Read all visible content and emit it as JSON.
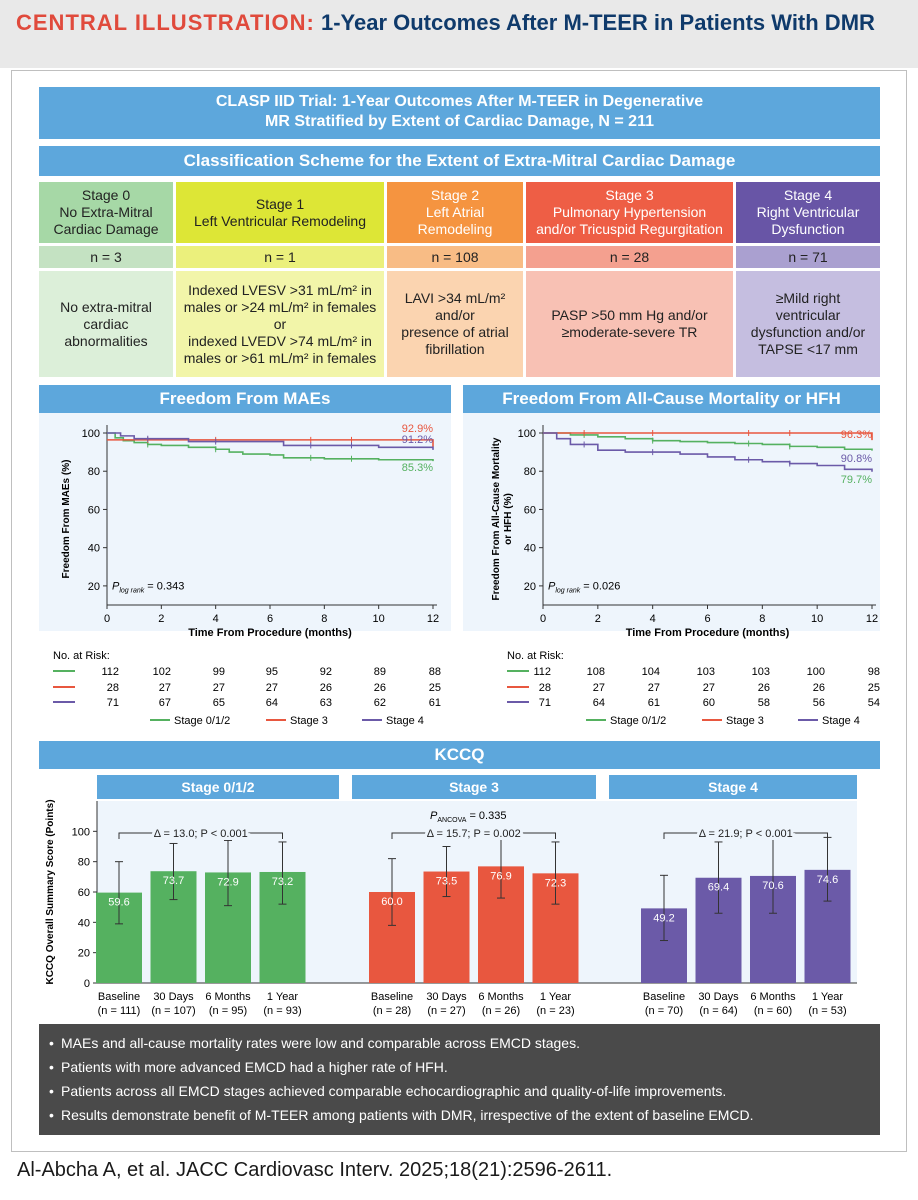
{
  "header": {
    "lead": "CENTRAL ILLUSTRATION:",
    "title": "1-Year Outcomes After M-TEER in Patients With DMR"
  },
  "trial": {
    "line1": "CLASP IID Trial: 1-Year Outcomes After M-TEER in Degenerative",
    "line2": "MR Stratified by Extent of Cardiac Damage, N = 211"
  },
  "classification": {
    "title": "Classification Scheme for the Extent of Extra-Mitral Cardiac Damage",
    "stages": [
      {
        "head": [
          "Stage 0",
          "No Extra-Mitral",
          "Cardiac Damage"
        ],
        "n": "n = 3",
        "desc": [
          "No extra-mitral",
          "cardiac",
          "abnormalities"
        ]
      },
      {
        "head": [
          "Stage 1",
          "Left Ventricular Remodeling"
        ],
        "n": "n = 1",
        "desc": [
          "Indexed LVESV >31 mL/m² in",
          "males or >24 mL/m² in females",
          "or",
          "indexed LVEDV >74 mL/m² in",
          "males or >61 mL/m² in females"
        ]
      },
      {
        "head": [
          "Stage 2",
          "Left Atrial",
          "Remodeling"
        ],
        "n": "n = 108",
        "desc": [
          "LAVI >34 mL/m²",
          "and/or",
          "presence of atrial",
          "fibrillation"
        ]
      },
      {
        "head": [
          "Stage 3",
          "Pulmonary Hypertension",
          "and/or Tricuspid Regurgitation"
        ],
        "n": "n = 28",
        "desc": [
          "PASP >50 mm Hg and/or",
          "≥moderate-severe TR"
        ]
      },
      {
        "head": [
          "Stage 4",
          "Right Ventricular",
          "Dysfunction"
        ],
        "n": "n = 71",
        "desc": [
          "≥Mild right",
          "ventricular",
          "dysfunction and/or",
          "TAPSE <17 mm"
        ]
      }
    ]
  },
  "colors": {
    "green": "#55b160",
    "red": "#e8573f",
    "purple": "#6b5aa8",
    "blue": "#5da7dc"
  },
  "chart_data": [
    {
      "type": "line",
      "title": "Freedom From MAEs",
      "xlabel": "Time From Procedure (months)",
      "ylabel": "Freedom From MAEs (%)",
      "xlim": [
        0,
        12
      ],
      "ylim": [
        10,
        100
      ],
      "xticks": [
        "0",
        "2",
        "4",
        "6",
        "8",
        "10",
        "12"
      ],
      "yticks": [
        "20",
        "40",
        "60",
        "80",
        "100"
      ],
      "annotation": {
        "p_label": "log rank",
        "p_value": "= 0.343"
      },
      "end_labels": [
        "92.9%",
        "91.2%",
        "85.3%"
      ],
      "series": [
        {
          "name": "Stage 0/1/2",
          "color": "#55b160",
          "x": [
            0,
            0.3,
            0.6,
            1,
            1.5,
            2,
            3,
            4,
            4.5,
            5,
            6,
            6.5,
            8,
            10,
            12
          ],
          "y": [
            100,
            97.5,
            96,
            95,
            94,
            93.5,
            92.5,
            91.5,
            90,
            89,
            88.5,
            87,
            86.5,
            86,
            85.3
          ]
        },
        {
          "name": "Stage 3",
          "color": "#e8573f",
          "x": [
            0,
            6.7,
            12
          ],
          "y": [
            96.4,
            96.4,
            92.9
          ]
        },
        {
          "name": "Stage 4",
          "color": "#6b5aa8",
          "x": [
            0,
            0.5,
            1,
            3,
            6.5,
            10,
            12
          ],
          "y": [
            100,
            98.5,
            97,
            95.5,
            93.5,
            92.5,
            91.2
          ]
        }
      ],
      "risk_header": "No. at Risk:",
      "risk_rows": [
        {
          "color": "#55b160",
          "values": [
            "112",
            "102",
            "99",
            "95",
            "92",
            "89",
            "88"
          ]
        },
        {
          "color": "#e8573f",
          "values": [
            "28",
            "27",
            "27",
            "27",
            "26",
            "26",
            "25"
          ]
        },
        {
          "color": "#6b5aa8",
          "values": [
            "71",
            "67",
            "65",
            "64",
            "63",
            "62",
            "61"
          ]
        }
      ],
      "legend": [
        "Stage 0/1/2",
        "Stage 3",
        "Stage 4"
      ]
    },
    {
      "type": "line",
      "title": "Freedom From All-Cause Mortality or HFH",
      "xlabel": "Time From Procedure (months)",
      "ylabel": "Freedom From All-Cause Mortality or HFH (%)",
      "xlim": [
        0,
        12
      ],
      "ylim": [
        10,
        100
      ],
      "xticks": [
        "0",
        "2",
        "4",
        "6",
        "8",
        "10",
        "12"
      ],
      "yticks": [
        "20",
        "40",
        "60",
        "80",
        "100"
      ],
      "annotation": {
        "p_label": "log rank",
        "p_value": "= 0.026"
      },
      "end_labels": [
        "96.3%",
        "90.8%",
        "79.7%"
      ],
      "series": [
        {
          "name": "Stage 0/1/2",
          "color": "#55b160",
          "x": [
            0,
            1,
            2,
            3,
            4,
            5,
            6,
            7,
            8,
            9,
            10,
            11,
            12
          ],
          "y": [
            100,
            99,
            98,
            97,
            96,
            95.5,
            95,
            94.5,
            94,
            93,
            92.5,
            91.5,
            90.8
          ]
        },
        {
          "name": "Stage 3",
          "color": "#e8573f",
          "x": [
            0,
            6.7,
            12
          ],
          "y": [
            100,
            100,
            96.3
          ]
        },
        {
          "name": "Stage 4",
          "color": "#6b5aa8",
          "x": [
            0,
            0.5,
            1,
            2,
            3,
            5,
            6,
            7,
            8,
            9,
            10,
            11,
            12
          ],
          "y": [
            100,
            97,
            94,
            91,
            90,
            89,
            87.5,
            86,
            85,
            84,
            83,
            81,
            79.7
          ]
        }
      ],
      "risk_header": "No. at Risk:",
      "risk_rows": [
        {
          "color": "#55b160",
          "values": [
            "112",
            "108",
            "104",
            "103",
            "103",
            "100",
            "98"
          ]
        },
        {
          "color": "#e8573f",
          "values": [
            "28",
            "27",
            "27",
            "27",
            "26",
            "26",
            "25"
          ]
        },
        {
          "color": "#6b5aa8",
          "values": [
            "71",
            "64",
            "61",
            "60",
            "58",
            "56",
            "54"
          ]
        }
      ],
      "legend": [
        "Stage 0/1/2",
        "Stage 3",
        "Stage 4"
      ]
    },
    {
      "type": "bar",
      "title": "KCCQ",
      "ylabel": "KCCQ Overall Summary Score (Points)",
      "ylim": [
        0,
        120
      ],
      "yticks": [
        "0",
        "20",
        "40",
        "60",
        "80",
        "100"
      ],
      "p_ancova": {
        "label": "ANCOVA",
        "value": "= 0.335"
      },
      "groups": [
        {
          "name": "Stage 0/1/2",
          "color": "#55b160",
          "delta": "Δ = 13.0; P < 0.001",
          "categories": [
            "Baseline",
            "30 Days",
            "6 Months",
            "1 Year"
          ],
          "ns": [
            "(n = 111)",
            "(n = 107)",
            "(n = 95)",
            "(n = 93)"
          ],
          "values": [
            59.6,
            73.7,
            72.9,
            73.2
          ],
          "labels": [
            "59.6",
            "73.7",
            "72.9",
            "73.2"
          ],
          "err_low": [
            39,
            55,
            51,
            52
          ],
          "err_high": [
            80,
            92,
            94,
            93
          ]
        },
        {
          "name": "Stage 3",
          "color": "#e8573f",
          "delta": "Δ = 15.7; P = 0.002",
          "categories": [
            "Baseline",
            "30 Days",
            "6 Months",
            "1 Year"
          ],
          "ns": [
            "(n = 28)",
            "(n = 27)",
            "(n = 26)",
            "(n = 23)"
          ],
          "values": [
            60.0,
            73.5,
            76.9,
            72.3
          ],
          "labels": [
            "60.0",
            "73.5",
            "76.9",
            "72.3"
          ],
          "err_low": [
            38,
            57,
            56,
            52
          ],
          "err_high": [
            82,
            90,
            97,
            93
          ]
        },
        {
          "name": "Stage 4",
          "color": "#6b5aa8",
          "delta": "Δ = 21.9; P < 0.001",
          "categories": [
            "Baseline",
            "30 Days",
            "6 Months",
            "1 Year"
          ],
          "ns": [
            "(n = 70)",
            "(n = 64)",
            "(n = 60)",
            "(n = 53)"
          ],
          "values": [
            49.2,
            69.4,
            70.6,
            74.6
          ],
          "labels": [
            "49.2",
            "69.4",
            "70.6",
            "74.6"
          ],
          "err_low": [
            28,
            46,
            46,
            54
          ],
          "err_high": [
            71,
            93,
            95,
            96
          ]
        }
      ]
    }
  ],
  "bullets": [
    "MAEs and all-cause mortality rates were low and comparable across EMCD stages.",
    "Patients with more advanced EMCD had a higher rate of HFH.",
    "Patients across all EMCD stages achieved comparable echocardiographic and quality-of-life improvements.",
    "Results demonstrate benefit of M-TEER among patients with DMR, irrespective of the extent of baseline EMCD."
  ],
  "citation": "Al-Abcha A, et al. JACC Cardiovasc Interv. 2025;18(21):2596-2611."
}
